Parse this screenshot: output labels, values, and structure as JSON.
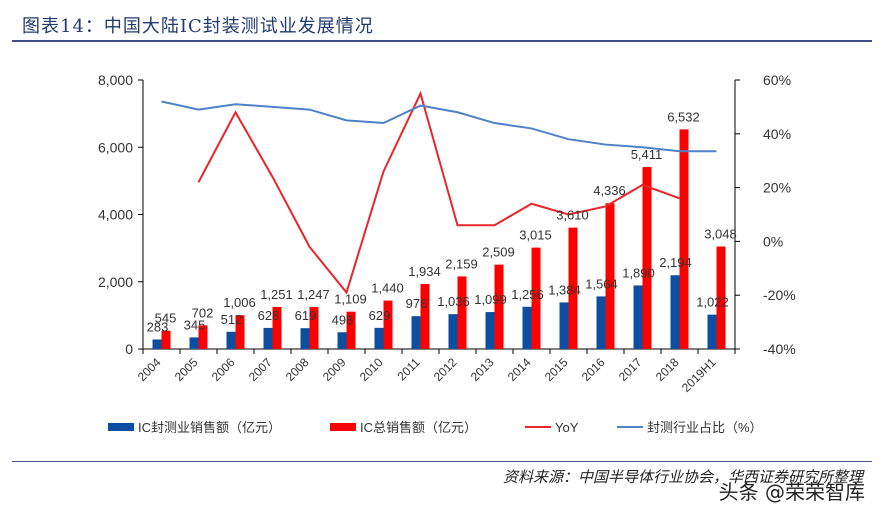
{
  "title": "图表14：中国大陆IC封装测试业发展情况",
  "source": "资料来源：中国半导体行业协会，华西证券研究所整理",
  "watermark": "头条 @荣荣智库",
  "colors": {
    "packaging": "#0b4ea2",
    "total": "#ff0000",
    "yoy": "#e8262b",
    "share": "#4f81c7"
  },
  "chart_data": {
    "type": "bar+line",
    "categories": [
      "2004",
      "2005",
      "2006",
      "2007",
      "2008",
      "2009",
      "2010",
      "2011",
      "2012",
      "2013",
      "2014",
      "2015",
      "2016",
      "2017",
      "2018",
      "2019H1"
    ],
    "left_axis": {
      "ylim": [
        0,
        8000
      ],
      "ticks": [
        "0",
        "2,000",
        "4,000",
        "6,000",
        "8,000"
      ]
    },
    "right_axis": {
      "ylim": [
        -40,
        60
      ],
      "ticks": [
        "-40%",
        "-20%",
        "0%",
        "20%",
        "40%",
        "60%"
      ]
    },
    "series": [
      {
        "name": "IC封测业销售额（亿元）",
        "type": "bar",
        "axis": "left",
        "values": [
          283,
          345,
          512,
          628,
          619,
          498,
          629,
          976,
          1036,
          1099,
          1256,
          1384,
          1564,
          1890,
          2194,
          1022
        ],
        "labels": [
          "283",
          "345",
          "512",
          "628",
          "619",
          "498",
          "629",
          "976",
          "1,036",
          "1,099",
          "1,256",
          "1,384",
          "1,564",
          "1,890",
          "2,194",
          "1,022"
        ]
      },
      {
        "name": "IC总销售额（亿元）",
        "type": "bar",
        "axis": "left",
        "values": [
          545,
          702,
          1006,
          1251,
          1247,
          1109,
          1440,
          1934,
          2159,
          2509,
          3015,
          3610,
          4336,
          5411,
          6532,
          3048
        ],
        "labels": [
          "545",
          "702",
          "1,006",
          "1,251",
          "1,247",
          "1,109",
          "1,440",
          "1,934",
          "2,159",
          "2,509",
          "3,015",
          "3,610",
          "4,336",
          "5,411",
          "6,532",
          "3,048"
        ]
      },
      {
        "name": "YoY",
        "type": "line",
        "axis": "right",
        "values": [
          null,
          22,
          48,
          24,
          -2,
          -19,
          26,
          55,
          6,
          6,
          14,
          10,
          13,
          21,
          16,
          null
        ]
      },
      {
        "name": "封测行业占比（%）",
        "type": "line",
        "axis": "right",
        "values": [
          52,
          49,
          51,
          50,
          49,
          45,
          44,
          50.5,
          48,
          44,
          42,
          38,
          36,
          35,
          33.5,
          33.5
        ]
      }
    ],
    "legend": "bottom"
  }
}
